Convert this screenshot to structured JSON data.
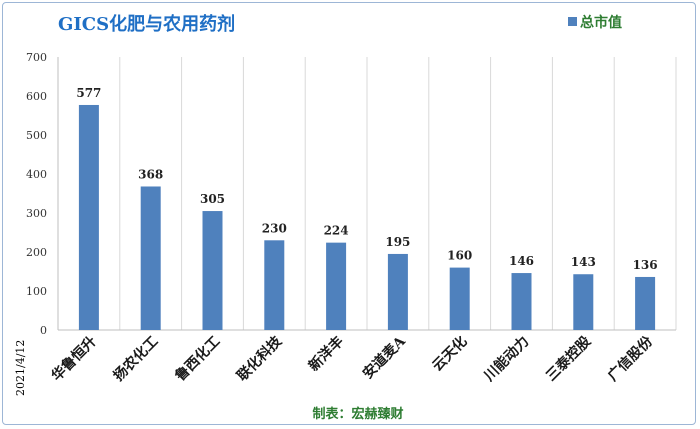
{
  "chart_data": {
    "type": "bar",
    "title": "GICS化肥与农用药剂",
    "legend": {
      "label": "总市值",
      "placement": "top-right"
    },
    "categories": [
      "华鲁恒升",
      "扬农化工",
      "鲁西化工",
      "联化科技",
      "新洋丰",
      "安道麦A",
      "云天化",
      "川能动力",
      "三泰控股",
      "广信股份"
    ],
    "series": [
      {
        "name": "总市值",
        "values": [
          577,
          368,
          305,
          230,
          224,
          195,
          160,
          146,
          143,
          136
        ]
      }
    ],
    "ylim": [
      0,
      700
    ],
    "yticks": [
      0,
      100,
      200,
      300,
      400,
      500,
      600,
      700
    ],
    "grid": "vertical-category-separators",
    "date_label": "2021/4/12",
    "source": "制表：宏赫臻财",
    "colors": {
      "bar": "#4f81bd",
      "title": "#1f6fc5",
      "legend_text": "#2e7d32",
      "source_text": "#2e7d32",
      "grid": "#d9d9d9",
      "axis": "#bfbfbf"
    }
  }
}
